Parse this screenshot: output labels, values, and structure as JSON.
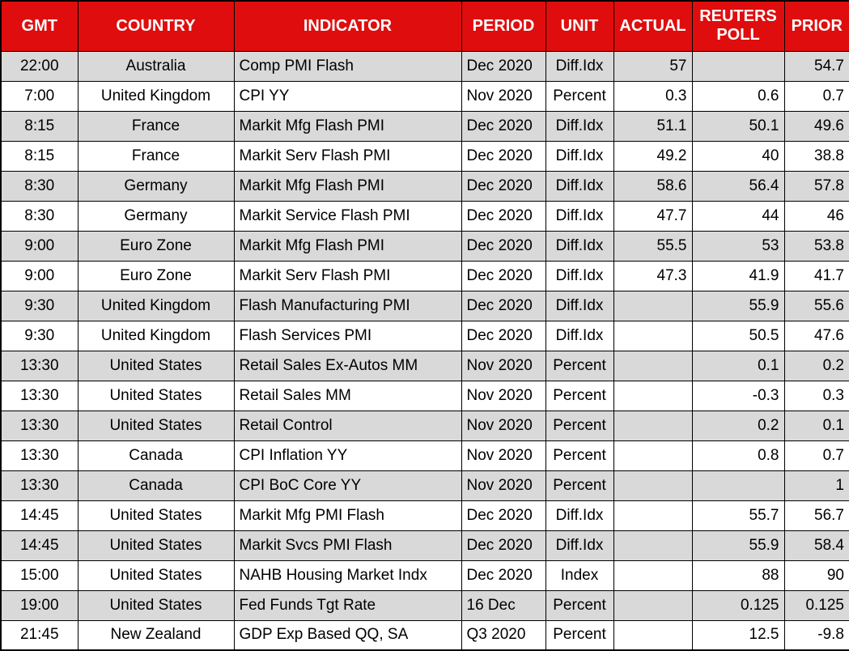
{
  "colors": {
    "header_bg": "#df0d0d",
    "header_text": "#ffffff",
    "row_alt_bg": "#d9d9d9",
    "row_bg": "#ffffff",
    "grid": "#000000"
  },
  "chart_data": {
    "type": "table",
    "columns": [
      {
        "key": "gmt",
        "label": "GMT"
      },
      {
        "key": "country",
        "label": "COUNTRY"
      },
      {
        "key": "indicator",
        "label": "INDICATOR"
      },
      {
        "key": "period",
        "label": "PERIOD"
      },
      {
        "key": "unit",
        "label": "UNIT"
      },
      {
        "key": "actual",
        "label": "ACTUAL"
      },
      {
        "key": "reuters_poll",
        "label": "REUTERS POLL"
      },
      {
        "key": "prior",
        "label": "PRIOR"
      }
    ],
    "rows": [
      {
        "gmt": "22:00",
        "country": "Australia",
        "indicator": "Comp PMI Flash",
        "period": "Dec 2020",
        "unit": "Diff.Idx",
        "actual": "57",
        "reuters_poll": "",
        "prior": "54.7"
      },
      {
        "gmt": "7:00",
        "country": "United Kingdom",
        "indicator": "CPI YY",
        "period": "Nov 2020",
        "unit": "Percent",
        "actual": "0.3",
        "reuters_poll": "0.6",
        "prior": "0.7"
      },
      {
        "gmt": "8:15",
        "country": "France",
        "indicator": "Markit Mfg Flash PMI",
        "period": "Dec 2020",
        "unit": "Diff.Idx",
        "actual": "51.1",
        "reuters_poll": "50.1",
        "prior": "49.6"
      },
      {
        "gmt": "8:15",
        "country": "France",
        "indicator": "Markit Serv Flash PMI",
        "period": "Dec 2020",
        "unit": "Diff.Idx",
        "actual": "49.2",
        "reuters_poll": "40",
        "prior": "38.8"
      },
      {
        "gmt": "8:30",
        "country": "Germany",
        "indicator": "Markit Mfg Flash PMI",
        "period": "Dec 2020",
        "unit": "Diff.Idx",
        "actual": "58.6",
        "reuters_poll": "56.4",
        "prior": "57.8"
      },
      {
        "gmt": "8:30",
        "country": "Germany",
        "indicator": "Markit Service Flash PMI",
        "period": "Dec 2020",
        "unit": "Diff.Idx",
        "actual": "47.7",
        "reuters_poll": "44",
        "prior": "46"
      },
      {
        "gmt": "9:00",
        "country": "Euro Zone",
        "indicator": "Markit Mfg Flash PMI",
        "period": "Dec 2020",
        "unit": "Diff.Idx",
        "actual": "55.5",
        "reuters_poll": "53",
        "prior": "53.8"
      },
      {
        "gmt": "9:00",
        "country": "Euro Zone",
        "indicator": "Markit Serv Flash PMI",
        "period": "Dec 2020",
        "unit": "Diff.Idx",
        "actual": "47.3",
        "reuters_poll": "41.9",
        "prior": "41.7"
      },
      {
        "gmt": "9:30",
        "country": "United Kingdom",
        "indicator": "Flash Manufacturing PMI",
        "period": "Dec 2020",
        "unit": "Diff.Idx",
        "actual": "",
        "reuters_poll": "55.9",
        "prior": "55.6"
      },
      {
        "gmt": "9:30",
        "country": "United Kingdom",
        "indicator": "Flash Services PMI",
        "period": "Dec 2020",
        "unit": "Diff.Idx",
        "actual": "",
        "reuters_poll": "50.5",
        "prior": "47.6"
      },
      {
        "gmt": "13:30",
        "country": "United States",
        "indicator": "Retail Sales Ex-Autos MM",
        "period": "Nov 2020",
        "unit": "Percent",
        "actual": "",
        "reuters_poll": "0.1",
        "prior": "0.2"
      },
      {
        "gmt": "13:30",
        "country": "United States",
        "indicator": "Retail Sales MM",
        "period": "Nov 2020",
        "unit": "Percent",
        "actual": "",
        "reuters_poll": "-0.3",
        "prior": "0.3"
      },
      {
        "gmt": "13:30",
        "country": "United States",
        "indicator": "Retail Control",
        "period": "Nov 2020",
        "unit": "Percent",
        "actual": "",
        "reuters_poll": "0.2",
        "prior": "0.1"
      },
      {
        "gmt": "13:30",
        "country": "Canada",
        "indicator": "CPI Inflation YY",
        "period": "Nov 2020",
        "unit": "Percent",
        "actual": "",
        "reuters_poll": "0.8",
        "prior": "0.7"
      },
      {
        "gmt": "13:30",
        "country": "Canada",
        "indicator": "CPI BoC Core YY",
        "period": "Nov 2020",
        "unit": "Percent",
        "actual": "",
        "reuters_poll": "",
        "prior": "1"
      },
      {
        "gmt": "14:45",
        "country": "United States",
        "indicator": "Markit Mfg PMI Flash",
        "period": "Dec 2020",
        "unit": "Diff.Idx",
        "actual": "",
        "reuters_poll": "55.7",
        "prior": "56.7"
      },
      {
        "gmt": "14:45",
        "country": "United States",
        "indicator": "Markit Svcs PMI Flash",
        "period": "Dec 2020",
        "unit": "Diff.Idx",
        "actual": "",
        "reuters_poll": "55.9",
        "prior": "58.4"
      },
      {
        "gmt": "15:00",
        "country": "United States",
        "indicator": "NAHB Housing Market Indx",
        "period": "Dec 2020",
        "unit": "Index",
        "actual": "",
        "reuters_poll": "88",
        "prior": "90"
      },
      {
        "gmt": "19:00",
        "country": "United States",
        "indicator": "Fed Funds Tgt Rate",
        "period": "16 Dec",
        "unit": "Percent",
        "actual": "",
        "reuters_poll": "0.125",
        "prior": "0.125"
      },
      {
        "gmt": "21:45",
        "country": "New Zealand",
        "indicator": "GDP Exp Based QQ, SA",
        "period": "Q3 2020",
        "unit": "Percent",
        "actual": "",
        "reuters_poll": "12.5",
        "prior": "-9.8"
      }
    ]
  }
}
